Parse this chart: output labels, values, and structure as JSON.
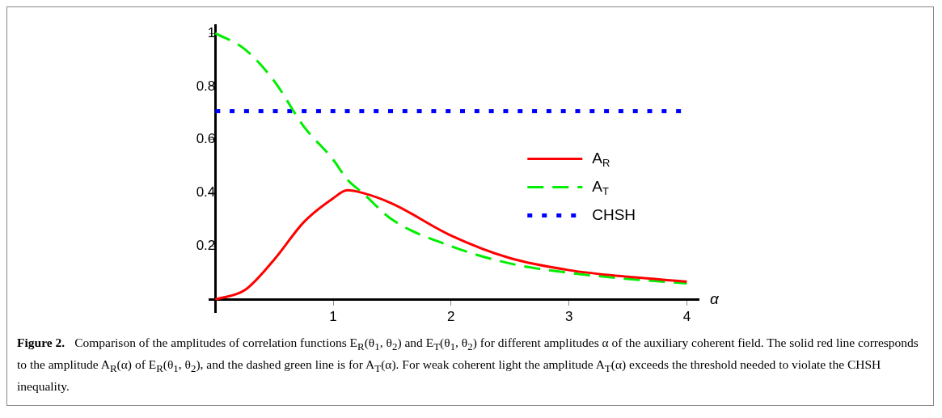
{
  "chart_data": {
    "type": "line",
    "x": [
      0,
      0.25,
      0.5,
      0.75,
      1.0,
      1.12,
      1.25,
      1.5,
      2,
      2.5,
      3,
      3.5,
      4
    ],
    "series": [
      {
        "name": "A$_{R}$",
        "color": "#ff0000",
        "line_style": "solid",
        "values": [
          0,
          0.035,
          0.15,
          0.29,
          0.38,
          0.41,
          0.4,
          0.36,
          0.24,
          0.155,
          0.11,
          0.085,
          0.067
        ]
      },
      {
        "name": "A$_{T}$",
        "color": "#00ee00",
        "line_style": "dashed",
        "values": [
          1,
          0.94,
          0.82,
          0.65,
          0.525,
          0.45,
          0.4,
          0.3,
          0.2,
          0.135,
          0.1,
          0.077,
          0.06
        ]
      },
      {
        "name": "CHSH",
        "color": "#0000ff",
        "line_style": "dotted",
        "x": [
          0,
          3.95
        ],
        "values": [
          0.707,
          0.707
        ]
      }
    ],
    "xlabel": "α",
    "xlim": [
      -0.05,
      4.1
    ],
    "ylim": [
      -0.05,
      1.03
    ],
    "xticks": [
      1,
      2,
      3,
      4
    ],
    "yticks": [
      0.2,
      0.4,
      0.6,
      0.8,
      1
    ],
    "grid": false,
    "legend": "right",
    "marker": "none",
    "annotations": [
      "Figure 2.",
      "Comparison of the amplitudes of correlation functions E$_{R}$(θ$_{1}$, θ$_{2}$) and E$_{T}$(θ$_{1}$, θ$_{2}$) for different amplitudes α of the auxiliary coherent field. The solid red line corresponds to the amplitude A$_{R}$(α) of E$_{R}$(θ$_{1}$, θ$_{2}$), and the dashed green line is for A$_{T}$(α). For weak coherent light the amplitude A$_{T}$(α) exceeds the threshold needed to violate the CHSH inequality."
    ]
  }
}
